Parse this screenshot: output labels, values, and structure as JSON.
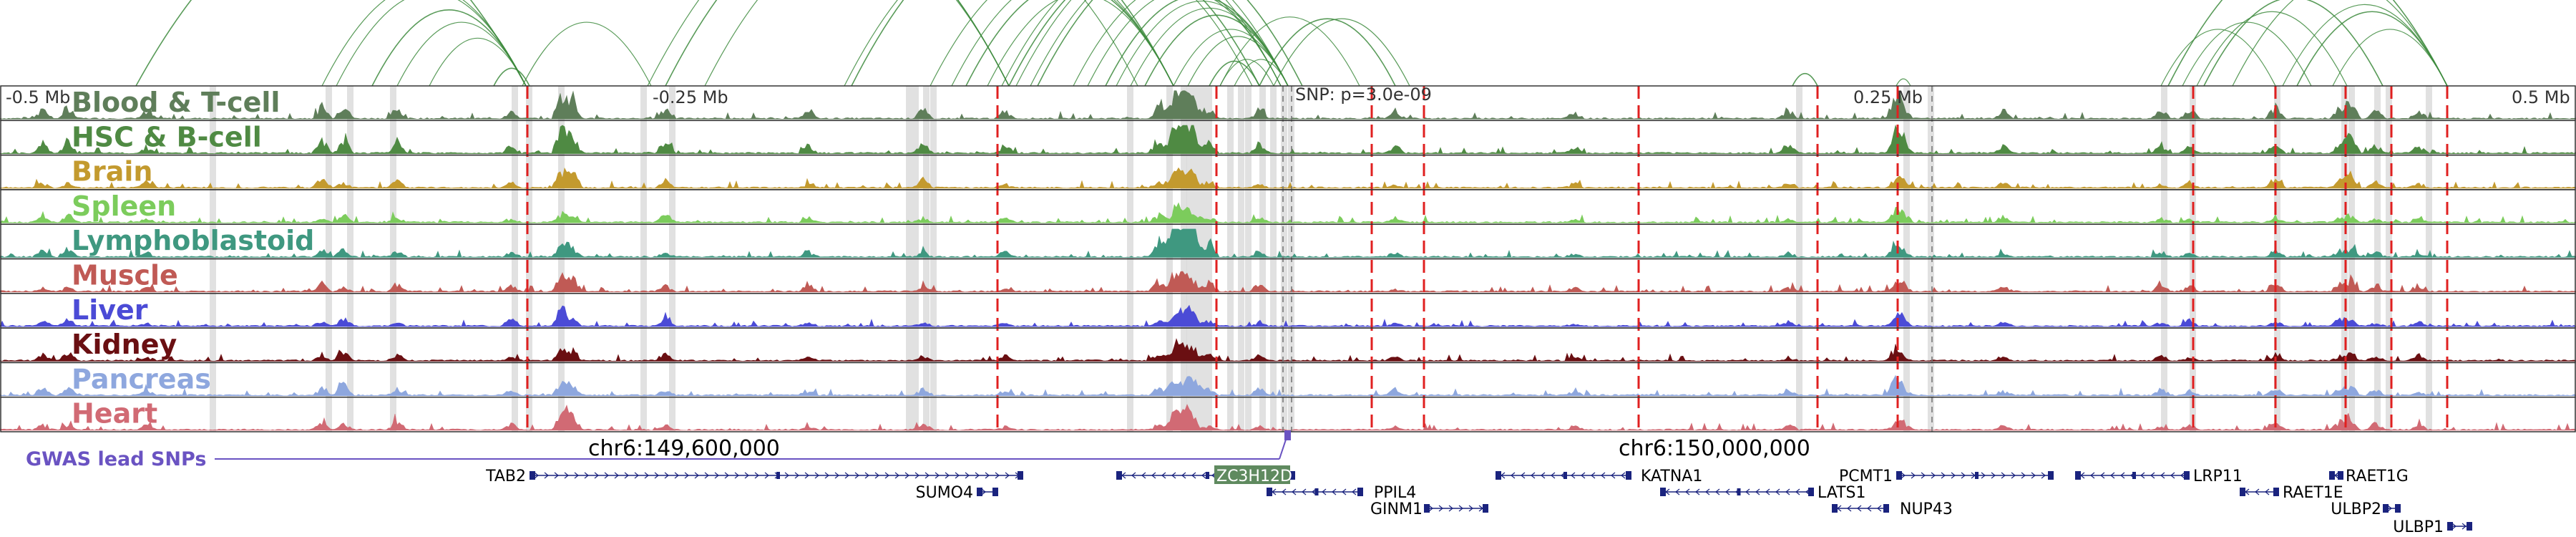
{
  "scale": {
    "left": "-0.5 Mb",
    "mid_left": "-0.25 Mb",
    "snp": "SNP: p=3.0e-09",
    "mid_right": "0.25 Mb",
    "right": "0.5 Mb"
  },
  "tracks": [
    {
      "label": "Blood & T-cell",
      "color": "#5f7e5a"
    },
    {
      "label": "HSC & B-cell",
      "color": "#4f8a43"
    },
    {
      "label": "Brain",
      "color": "#c39a2e"
    },
    {
      "label": "Spleen",
      "color": "#7ccc5c"
    },
    {
      "label": "Lymphoblastoid",
      "color": "#3f9880"
    },
    {
      "label": "Muscle",
      "color": "#c05a55"
    },
    {
      "label": "Liver",
      "color": "#4b4bd6"
    },
    {
      "label": "Kidney",
      "color": "#6a0f12"
    },
    {
      "label": "Pancreas",
      "color": "#8ea7de"
    },
    {
      "label": "Heart",
      "color": "#d16a74"
    }
  ],
  "gwas": {
    "label": "GWAS lead SNPs",
    "color": "#6a53c2"
  },
  "coords": [
    "chr6:149,600,000",
    "chr6:150,000,000"
  ],
  "genes": [
    {
      "name": "TAB2"
    },
    {
      "name": "SUMO4"
    },
    {
      "name": "ZC3H12D",
      "highlight": true
    },
    {
      "name": "PPIL4"
    },
    {
      "name": "GINM1"
    },
    {
      "name": "KATNA1"
    },
    {
      "name": "LATS1"
    },
    {
      "name": "NUP43"
    },
    {
      "name": "PCMT1"
    },
    {
      "name": "LRP11"
    },
    {
      "name": "RAET1G"
    },
    {
      "name": "RAET1E"
    },
    {
      "name": "ULBP2"
    },
    {
      "name": "ULBP1"
    }
  ],
  "colors": {
    "arc": "#3c8a3c",
    "eqtl_line": "#e02020",
    "highlight_band": "#d9d9d9",
    "gene_body": "#1a237e",
    "highlight_gene_bg": "#5f8a5f"
  }
}
